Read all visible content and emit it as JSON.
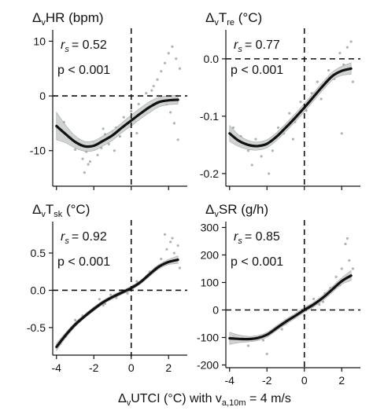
{
  "shared": {
    "xlabel_pre": "UTCI (°C) with v",
    "xlabel_sub": "a,10m",
    "xlabel_post": " = 4 m/s",
    "delta": "Δ",
    "v_sub": "v",
    "colors": {
      "fit": "#111111",
      "band": "#c8cdc9",
      "points": "#9aa3a0",
      "ref": "#111111"
    }
  },
  "chart_data": [
    {
      "type": "scatter",
      "title_main": "HR",
      "title_sub": "",
      "title_unit": " (bpm)",
      "stat_r": "= 0.52",
      "stat_p": "p < 0.001",
      "xlim": [
        -4.2,
        3.0
      ],
      "ylim": [
        -16.5,
        11.5
      ],
      "xticks": [
        -4,
        -2,
        0,
        2
      ],
      "yticks": [
        -10,
        0,
        10
      ],
      "ytick_labels": [
        "-10",
        "0",
        "10"
      ],
      "fit": {
        "x": [
          -4,
          -3.5,
          -3,
          -2.5,
          -2,
          -1.5,
          -1,
          -0.5,
          0,
          0.5,
          1,
          1.5,
          2,
          2.5
        ],
        "y": [
          -5.5,
          -7,
          -8.4,
          -9.2,
          -9.1,
          -8.2,
          -7.2,
          -5.8,
          -4.5,
          -3.2,
          -2,
          -1.1,
          -0.8,
          -0.7
        ]
      },
      "band_halfwidth": [
        2.5,
        1.6,
        1.1,
        0.9,
        0.9,
        0.9,
        0.9,
        0.9,
        1.0,
        1.0,
        1.0,
        0.9,
        0.8,
        0.8
      ],
      "points": {
        "x": [
          -3.8,
          -3.6,
          -3.2,
          -3.0,
          -2.8,
          -2.6,
          -2.4,
          -2.2,
          -2.0,
          -1.8,
          -1.6,
          -1.4,
          -1.2,
          -1.0,
          -0.8,
          -0.6,
          -0.4,
          -0.2,
          0.0,
          0.2,
          0.4,
          0.6,
          0.8,
          1.0,
          1.2,
          1.4,
          1.6,
          1.8,
          2.0,
          2.2,
          2.4,
          2.6,
          1.9,
          2.1,
          2.3,
          2.5,
          -2.5,
          -2.3,
          -1.5,
          -0.9,
          0.3,
          1.1
        ],
        "y": [
          -6.2,
          -4.8,
          -7.5,
          -9.8,
          -8.0,
          -11.5,
          -10.2,
          -12.0,
          -8.5,
          -10.8,
          -9.5,
          -7.0,
          -8.8,
          -6.5,
          -5.8,
          -7.4,
          -3.9,
          -5.2,
          -2.8,
          -4.6,
          -1.5,
          -3.2,
          0.5,
          -2.0,
          1.8,
          3.0,
          4.5,
          6.0,
          7.8,
          9.0,
          6.8,
          5.0,
          -1.5,
          -3.0,
          -5.0,
          -8.0,
          -14.0,
          -12.5,
          -6.0,
          -10.0,
          -6.8,
          1.0
        ]
      }
    },
    {
      "type": "scatter",
      "title_main": "T",
      "title_sub": "re",
      "title_unit": " (°C)",
      "stat_r": "= 0.77",
      "stat_p": "p < 0.001",
      "xlim": [
        -4.2,
        3.0
      ],
      "ylim": [
        -0.222,
        0.045
      ],
      "xticks": [
        -4,
        -2,
        0,
        2
      ],
      "yticks": [
        -0.2,
        -0.1,
        0.0
      ],
      "ytick_labels": [
        "-0.2",
        "-0.1",
        "0.0"
      ],
      "fit": {
        "x": [
          -4,
          -3.5,
          -3,
          -2.5,
          -2,
          -1.5,
          -1,
          -0.5,
          0,
          0.5,
          1,
          1.5,
          2,
          2.5
        ],
        "y": [
          -0.13,
          -0.143,
          -0.15,
          -0.152,
          -0.148,
          -0.136,
          -0.12,
          -0.103,
          -0.085,
          -0.066,
          -0.047,
          -0.03,
          -0.021,
          -0.017
        ]
      },
      "band_halfwidth": [
        0.014,
        0.01,
        0.008,
        0.007,
        0.007,
        0.007,
        0.007,
        0.007,
        0.007,
        0.007,
        0.007,
        0.007,
        0.008,
        0.01
      ],
      "points": {
        "x": [
          -3.8,
          -3.4,
          -3.0,
          -2.6,
          -2.3,
          -2.0,
          -1.7,
          -1.4,
          -1.1,
          -0.8,
          -0.5,
          -0.2,
          0.1,
          0.4,
          0.7,
          1.0,
          1.3,
          1.6,
          1.9,
          2.1,
          2.3,
          2.5,
          2.6,
          -2.8,
          -1.9,
          -0.6,
          0.9,
          2.0
        ],
        "y": [
          -0.12,
          -0.135,
          -0.16,
          -0.14,
          -0.17,
          -0.15,
          -0.16,
          -0.12,
          -0.13,
          -0.095,
          -0.11,
          -0.075,
          -0.09,
          -0.06,
          -0.04,
          -0.05,
          -0.02,
          -0.035,
          0.01,
          -0.01,
          0.02,
          0.03,
          -0.04,
          -0.185,
          -0.2,
          -0.14,
          -0.07,
          -0.13
        ]
      }
    },
    {
      "type": "scatter",
      "title_main": "T",
      "title_sub": "sk",
      "title_unit": " (°C)",
      "stat_r": "= 0.92",
      "stat_p": "p < 0.001",
      "xlim": [
        -4.2,
        3.0
      ],
      "ylim": [
        -0.87,
        0.88
      ],
      "xticks": [
        -4,
        -2,
        0,
        2
      ],
      "yticks": [
        -0.5,
        0.0,
        0.5
      ],
      "ytick_labels": [
        "-0.5",
        "0.0",
        "0.5"
      ],
      "fit": {
        "x": [
          -4,
          -3.5,
          -3,
          -2.5,
          -2,
          -1.5,
          -1,
          -0.5,
          0,
          0.5,
          1,
          1.5,
          2,
          2.5
        ],
        "y": [
          -0.76,
          -0.6,
          -0.46,
          -0.35,
          -0.25,
          -0.16,
          -0.09,
          -0.03,
          0.03,
          0.11,
          0.22,
          0.32,
          0.38,
          0.41
        ]
      },
      "band_halfwidth": [
        0.05,
        0.035,
        0.03,
        0.025,
        0.025,
        0.025,
        0.025,
        0.025,
        0.025,
        0.025,
        0.03,
        0.03,
        0.035,
        0.05
      ],
      "points": {
        "x": [
          -3.8,
          -3.5,
          -3.2,
          -2.9,
          -2.6,
          -2.3,
          -2.0,
          -1.7,
          -1.4,
          -1.1,
          -0.8,
          -0.5,
          -0.2,
          0.1,
          0.4,
          0.7,
          1.0,
          1.3,
          1.6,
          1.9,
          2.1,
          2.3,
          2.5,
          2.6,
          -3.0,
          -1.5,
          0.3,
          1.8,
          2.2
        ],
        "y": [
          -0.72,
          -0.62,
          -0.5,
          -0.42,
          -0.34,
          -0.3,
          -0.24,
          -0.12,
          -0.18,
          -0.06,
          -0.1,
          0.0,
          -0.04,
          0.06,
          0.1,
          0.15,
          0.25,
          0.3,
          0.42,
          0.55,
          0.65,
          0.5,
          0.6,
          0.3,
          -0.4,
          -0.2,
          0.12,
          0.75,
          0.7
        ]
      }
    },
    {
      "type": "scatter",
      "title_main": "SR",
      "title_sub": "",
      "title_unit": " (g/h)",
      "stat_r": "= 0.85",
      "stat_p": "p < 0.001",
      "xlim": [
        -4.2,
        3.0
      ],
      "ylim": [
        -210,
        310
      ],
      "xticks": [
        -4,
        -2,
        0,
        2
      ],
      "yticks": [
        -200,
        -100,
        0,
        100,
        200,
        300
      ],
      "ytick_labels": [
        "-200",
        "-100",
        "0",
        "100",
        "200",
        "300"
      ],
      "fit": {
        "x": [
          -4,
          -3.5,
          -3,
          -2.5,
          -2,
          -1.5,
          -1,
          -0.5,
          0,
          0.5,
          1,
          1.5,
          2,
          2.5
        ],
        "y": [
          -103,
          -105,
          -106,
          -102,
          -90,
          -67,
          -43,
          -22,
          0,
          20,
          45,
          75,
          105,
          125
        ]
      },
      "band_halfwidth": [
        22,
        14,
        10,
        9,
        9,
        9,
        9,
        9,
        9,
        9,
        10,
        11,
        12,
        18
      ],
      "points": {
        "x": [
          -3.8,
          -3.4,
          -3.0,
          -2.6,
          -2.2,
          -1.8,
          -1.4,
          -1.0,
          -0.6,
          -0.2,
          0.2,
          0.5,
          0.8,
          1.1,
          1.4,
          1.7,
          2.0,
          2.2,
          2.4,
          2.6,
          -2.0,
          -1.2,
          0.0,
          1.0,
          1.9,
          2.3
        ],
        "y": [
          -95,
          -110,
          -130,
          -100,
          -110,
          -80,
          -60,
          -50,
          -30,
          -10,
          10,
          40,
          20,
          60,
          80,
          120,
          150,
          240,
          180,
          150,
          -160,
          -70,
          -20,
          30,
          90,
          260
        ]
      }
    }
  ]
}
